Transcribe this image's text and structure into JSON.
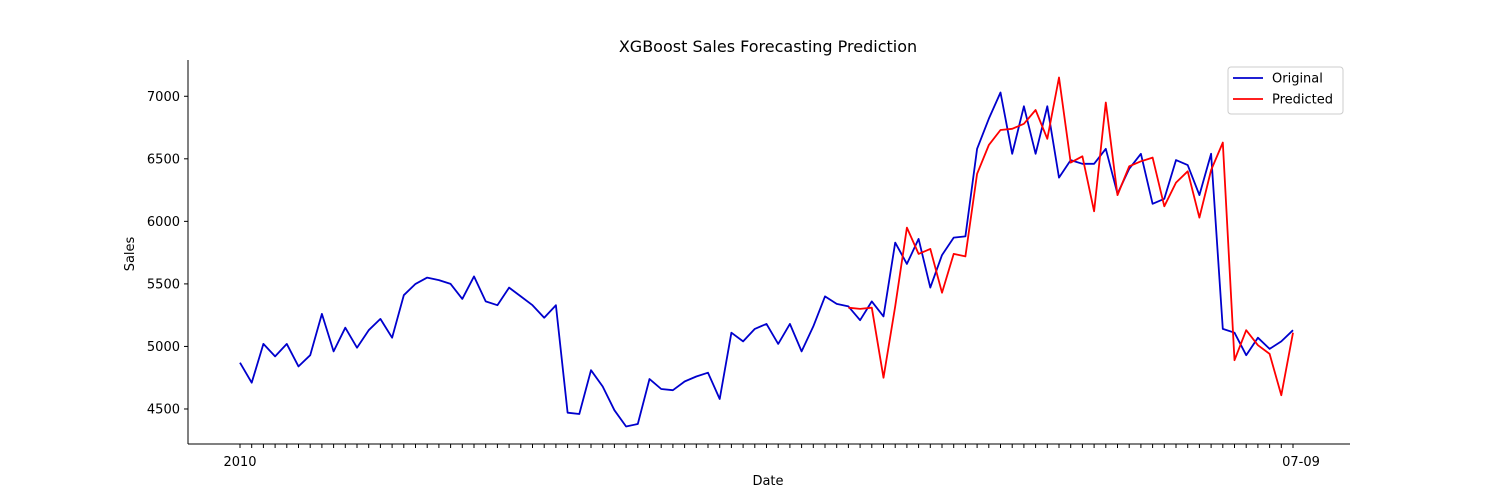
{
  "chart_data": {
    "type": "line",
    "title": "XGBoost Sales Forecasting Prediction",
    "xlabel": "Date",
    "ylabel": "Sales",
    "ylim": [
      4220,
      7290
    ],
    "yticks": [
      4500,
      5000,
      5500,
      6000,
      6500,
      7000
    ],
    "x_first_label": "2010",
    "x_last_label": "07-09",
    "grid": false,
    "legend_position": "top-right",
    "series": [
      {
        "name": "Original",
        "color": "#0000cd",
        "start_index": 0,
        "values": [
          4870,
          4710,
          5020,
          4920,
          5020,
          4840,
          4930,
          5260,
          4960,
          5150,
          4990,
          5130,
          5220,
          5070,
          5410,
          5500,
          5550,
          5530,
          5500,
          5380,
          5560,
          5360,
          5330,
          5470,
          5400,
          5330,
          5230,
          5330,
          4470,
          4460,
          4810,
          4680,
          4490,
          4360,
          4380,
          4740,
          4660,
          4650,
          4720,
          4760,
          4790,
          4580,
          5110,
          5040,
          5140,
          5180,
          5020,
          5180,
          4960,
          5160,
          5400,
          5340,
          5320,
          5210,
          5360,
          5240,
          5830,
          5660,
          5860,
          5470,
          5730,
          5870,
          5880,
          6580,
          6820,
          7030,
          6540,
          6920,
          6540,
          6920,
          6350,
          6490,
          6460,
          6460,
          6580,
          6220,
          6420,
          6540,
          6140,
          6180,
          6490,
          6450,
          6210,
          6540,
          5140,
          5110,
          4930,
          5070,
          4980,
          5040,
          5130
        ]
      },
      {
        "name": "Predicted",
        "color": "#ff0000",
        "start_index": 52,
        "values": [
          5310,
          5300,
          5310,
          4750,
          5320,
          5950,
          5740,
          5780,
          5430,
          5740,
          5720,
          6380,
          6610,
          6730,
          6740,
          6780,
          6890,
          6660,
          7150,
          6470,
          6520,
          6080,
          6950,
          6210,
          6440,
          6480,
          6510,
          6120,
          6310,
          6400,
          6030,
          6410,
          6630,
          4890,
          5130,
          5010,
          4940,
          4610,
          5110
        ]
      }
    ]
  }
}
